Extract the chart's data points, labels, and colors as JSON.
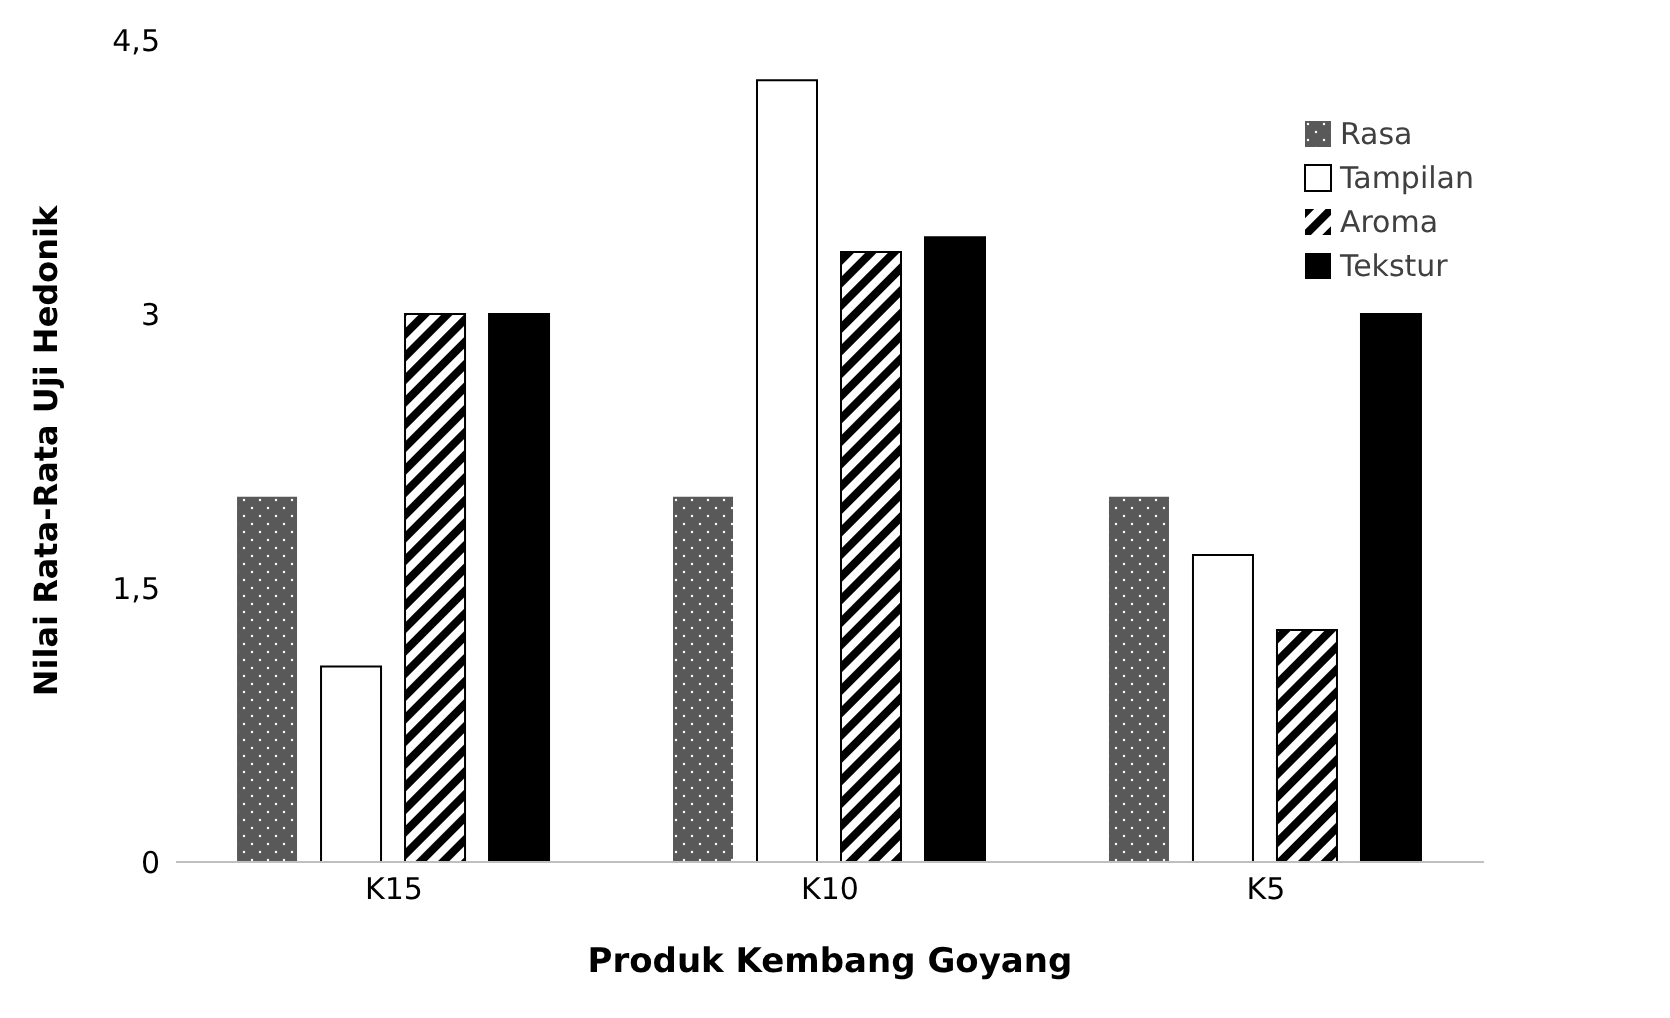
{
  "chart_data": {
    "type": "bar",
    "xlabel": "Produk Kembang Goyang",
    "ylabel": "Nilai Rata-Rata Uji Hedonik",
    "categories": [
      "K15",
      "K10",
      "K5"
    ],
    "series": [
      {
        "name": "Rasa",
        "color": "#595959",
        "values": [
          2,
          2,
          2
        ]
      },
      {
        "name": "Tampilan",
        "color": "#ffffff",
        "values": [
          1.07,
          4.28,
          1.68
        ]
      },
      {
        "name": "Aroma",
        "color": "#000000",
        "values": [
          3,
          3.34,
          1.27
        ]
      },
      {
        "name": "Tekstur",
        "color": "#000000",
        "values": [
          3,
          3.42,
          3
        ]
      }
    ],
    "ylim": [
      0,
      4.5
    ],
    "yticks": [
      0,
      {
        "value": 1.5,
        "label": "1,5"
      },
      3,
      {
        "value": 4.5,
        "label": "4,5"
      }
    ],
    "grid": false,
    "legend": "top right"
  }
}
